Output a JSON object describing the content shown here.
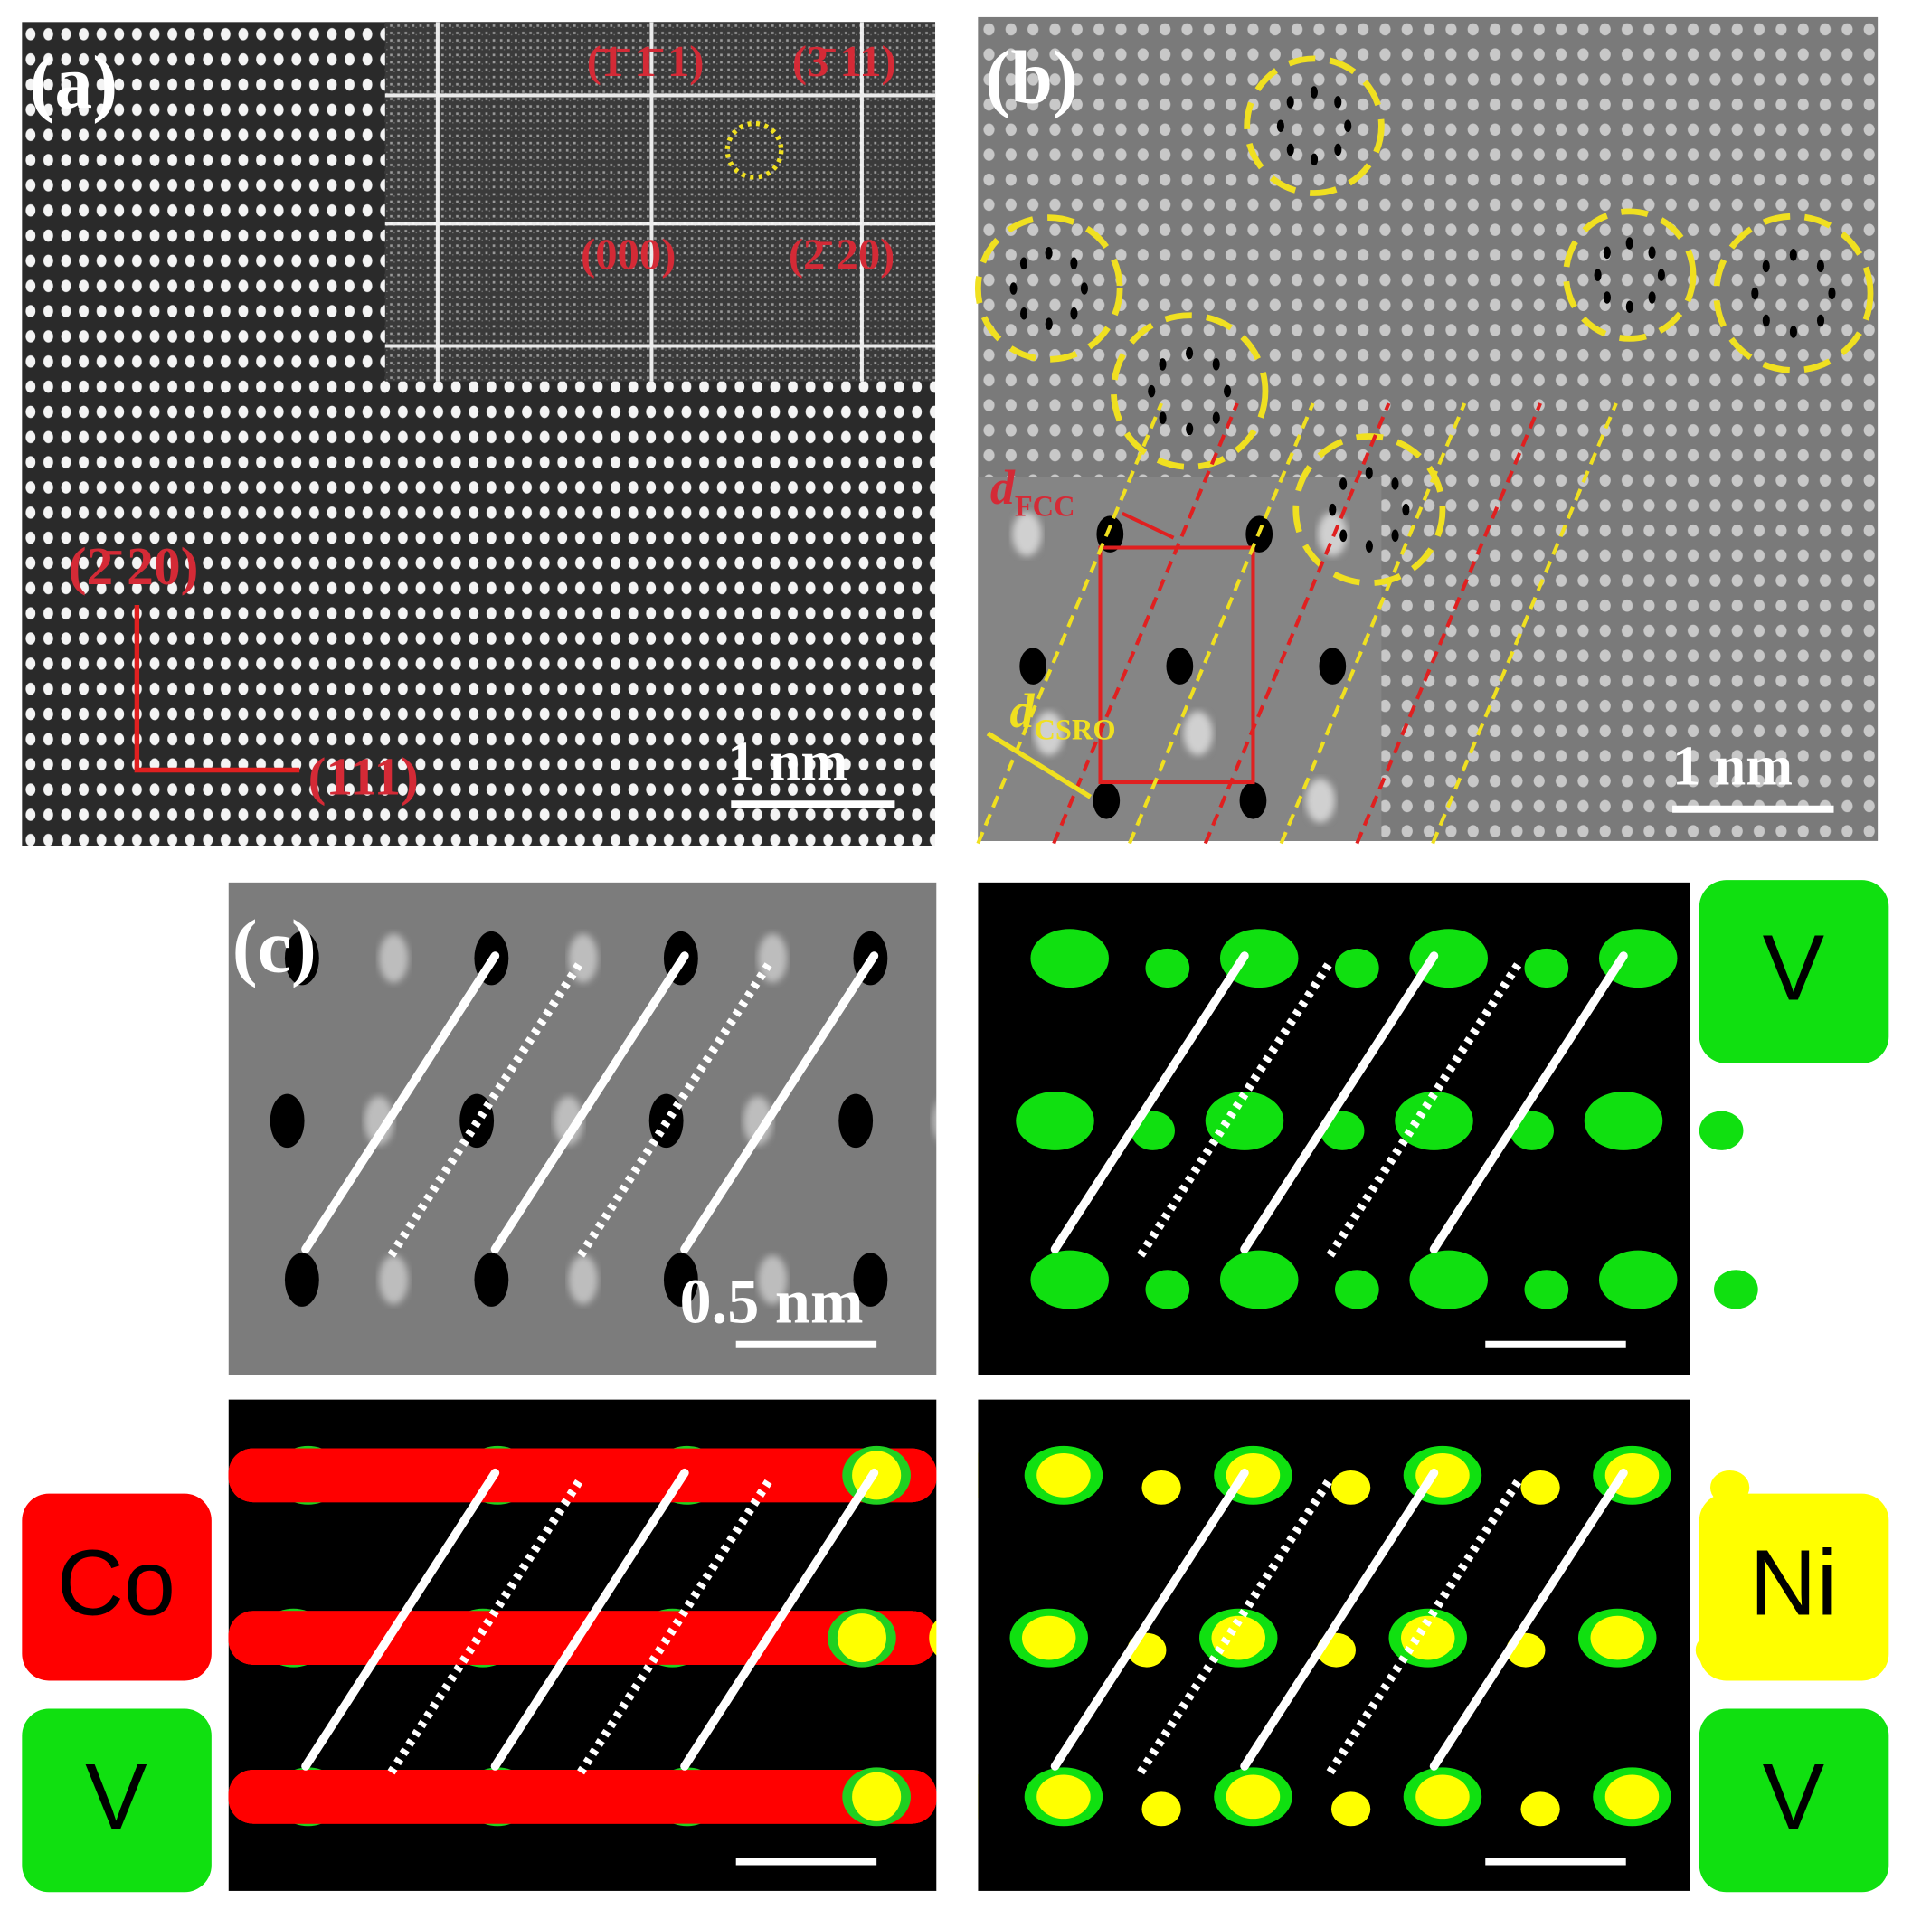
{
  "panels": {
    "a": {
      "label": "(a)",
      "fft_spots": [
        "(̄1̄ 1̄ 1)",
        "(3̄ 11)",
        "(000)",
        "(2̄ 20)"
      ],
      "axis_vertical": "(2̄ 20)",
      "axis_horizontal": "(111)",
      "scale_bar": "1 nm"
    },
    "b": {
      "label": "(b)",
      "d_fcc": {
        "symbol": "d",
        "subscript": "FCC"
      },
      "d_csro": {
        "symbol": "d",
        "subscript": "CSRO"
      },
      "scale_bar": "1 nm"
    },
    "c": {
      "label": "(c)",
      "scale_bar": "0.5 nm",
      "element_labels": [
        "V",
        "Co",
        "V",
        "Ni",
        "V"
      ]
    }
  }
}
